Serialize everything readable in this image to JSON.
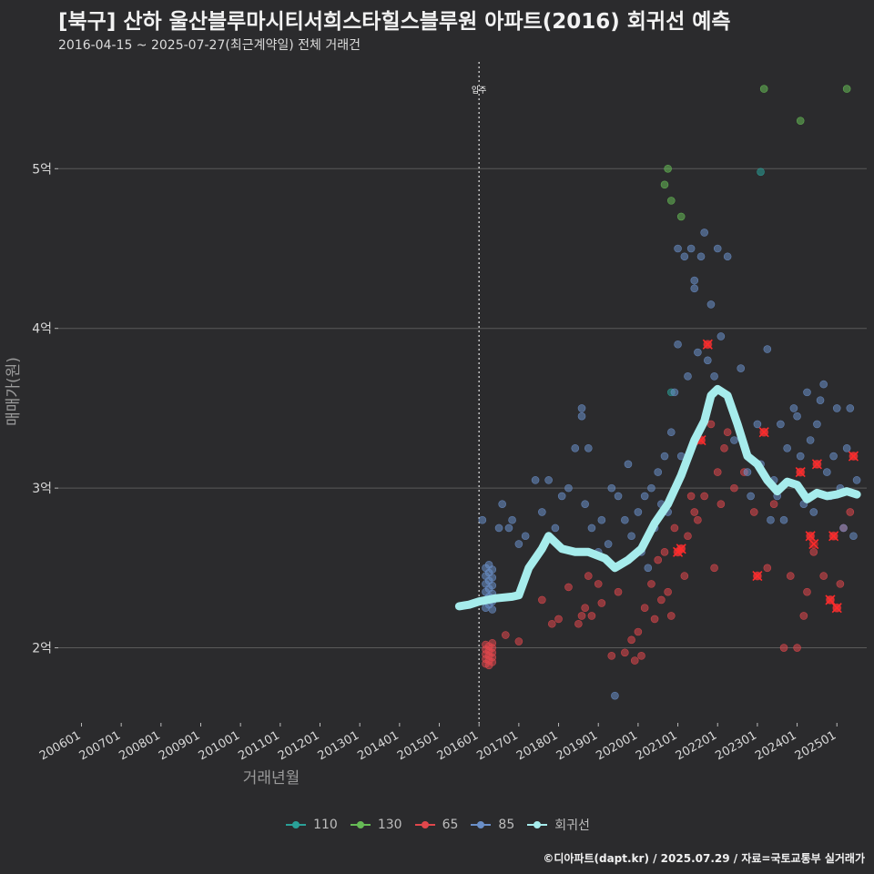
{
  "title": "[북구] 산하 울산블루마시티서희스타힐스블루원 아파트(2016) 회귀선 예측",
  "subtitle": "2016-04-15 ~ 2025-07-27(최근계약일) 전체 거래건",
  "caption": "©디아파트(dapt.kr) / 2025.07.29 / 자료=국토교통부 실거래가",
  "colors": {
    "background": "#2b2b2d",
    "grid": "#5a5a5a",
    "s110": "#2aa198",
    "s130": "#66bb55",
    "s65": "#e0474c",
    "s85": "#6a8fc8",
    "regression": "#a6ecec",
    "highlight": "#ff2a2a"
  },
  "chart_data": {
    "type": "scatter",
    "xlabel": "거래년월",
    "ylabel": "매매가(원)",
    "x_ticks": [
      "200601",
      "200701",
      "200801",
      "200901",
      "201001",
      "201101",
      "201201",
      "201301",
      "201401",
      "201501",
      "201601",
      "201701",
      "201801",
      "201901",
      "202001",
      "202101",
      "202201",
      "202301",
      "202401",
      "202501"
    ],
    "x_range": [
      "2005-06",
      "2025-10"
    ],
    "y_ticks": [
      {
        "value": 2.0,
        "label": "2억"
      },
      {
        "value": 3.0,
        "label": "3억"
      },
      {
        "value": 4.0,
        "label": "4억"
      },
      {
        "value": 5.0,
        "label": "5억"
      }
    ],
    "y_range": [
      1.53,
      5.68
    ],
    "y_unit": "억",
    "grid": true,
    "legend_position": "bottom",
    "vline": {
      "x": "2016-01",
      "label": "입주"
    },
    "series": [
      {
        "name": "110",
        "color_key": "s110",
        "points": [
          [
            "2020-11",
            3.6
          ],
          [
            "2023-02",
            4.98
          ]
        ]
      },
      {
        "name": "130",
        "color_key": "s130",
        "points": [
          [
            "2020-09",
            4.9
          ],
          [
            "2020-10",
            5.0
          ],
          [
            "2020-11",
            4.8
          ],
          [
            "2021-02",
            4.7
          ],
          [
            "2023-03",
            5.5
          ],
          [
            "2024-02",
            5.3
          ],
          [
            "2025-04",
            5.5
          ]
        ]
      },
      {
        "name": "65",
        "color_key": "s65",
        "points": [
          [
            "2016-03",
            1.9
          ],
          [
            "2016-03",
            1.93
          ],
          [
            "2016-03",
            1.96
          ],
          [
            "2016-03",
            1.99
          ],
          [
            "2016-03",
            2.02
          ],
          [
            "2016-04",
            1.89
          ],
          [
            "2016-04",
            1.92
          ],
          [
            "2016-04",
            1.95
          ],
          [
            "2016-04",
            1.98
          ],
          [
            "2016-04",
            2.01
          ],
          [
            "2016-05",
            1.91
          ],
          [
            "2016-05",
            1.94
          ],
          [
            "2016-05",
            1.97
          ],
          [
            "2016-05",
            2.0
          ],
          [
            "2016-05",
            2.03
          ],
          [
            "2016-09",
            2.08
          ],
          [
            "2017-01",
            2.04
          ],
          [
            "2017-08",
            2.3
          ],
          [
            "2017-11",
            2.15
          ],
          [
            "2018-01",
            2.18
          ],
          [
            "2018-04",
            2.38
          ],
          [
            "2018-07",
            2.15
          ],
          [
            "2018-08",
            2.2
          ],
          [
            "2018-09",
            2.25
          ],
          [
            "2018-10",
            2.45
          ],
          [
            "2018-11",
            2.2
          ],
          [
            "2019-01",
            2.4
          ],
          [
            "2019-02",
            2.28
          ],
          [
            "2019-05",
            1.95
          ],
          [
            "2019-07",
            2.35
          ],
          [
            "2019-09",
            1.97
          ],
          [
            "2019-11",
            2.05
          ],
          [
            "2019-12",
            1.92
          ],
          [
            "2020-01",
            2.1
          ],
          [
            "2020-02",
            1.95
          ],
          [
            "2020-03",
            2.25
          ],
          [
            "2020-05",
            2.4
          ],
          [
            "2020-06",
            2.18
          ],
          [
            "2020-07",
            2.55
          ],
          [
            "2020-08",
            2.3
          ],
          [
            "2020-09",
            2.6
          ],
          [
            "2020-10",
            2.35
          ],
          [
            "2020-11",
            2.2
          ],
          [
            "2020-12",
            2.75
          ],
          [
            "2021-01",
            2.6
          ],
          [
            "2021-02",
            2.62
          ],
          [
            "2021-03",
            2.45
          ],
          [
            "2021-04",
            2.7
          ],
          [
            "2021-05",
            2.95
          ],
          [
            "2021-06",
            2.85
          ],
          [
            "2021-07",
            2.8
          ],
          [
            "2021-08",
            3.3
          ],
          [
            "2021-09",
            2.95
          ],
          [
            "2021-10",
            3.9
          ],
          [
            "2021-11",
            3.4
          ],
          [
            "2021-12",
            2.5
          ],
          [
            "2022-01",
            3.1
          ],
          [
            "2022-02",
            2.9
          ],
          [
            "2022-03",
            3.25
          ],
          [
            "2022-04",
            3.35
          ],
          [
            "2022-06",
            3.0
          ],
          [
            "2022-09",
            3.1
          ],
          [
            "2022-12",
            2.85
          ],
          [
            "2023-01",
            2.45
          ],
          [
            "2023-03",
            3.35
          ],
          [
            "2023-04",
            2.5
          ],
          [
            "2023-06",
            2.9
          ],
          [
            "2023-09",
            2.0
          ],
          [
            "2023-11",
            2.45
          ],
          [
            "2024-01",
            2.0
          ],
          [
            "2024-02",
            3.1
          ],
          [
            "2024-03",
            2.2
          ],
          [
            "2024-04",
            2.35
          ],
          [
            "2024-05",
            2.7
          ],
          [
            "2024-06",
            2.6
          ],
          [
            "2024-07",
            3.15
          ],
          [
            "2024-09",
            2.45
          ],
          [
            "2024-11",
            2.3
          ],
          [
            "2024-12",
            2.7
          ],
          [
            "2025-01",
            2.25
          ],
          [
            "2025-02",
            2.4
          ],
          [
            "2025-03",
            2.75
          ],
          [
            "2025-05",
            2.85
          ],
          [
            "2025-06",
            3.2
          ]
        ]
      },
      {
        "name": "85",
        "color_key": "s85",
        "points": [
          [
            "2016-03",
            2.25
          ],
          [
            "2016-03",
            2.3
          ],
          [
            "2016-03",
            2.35
          ],
          [
            "2016-03",
            2.4
          ],
          [
            "2016-03",
            2.45
          ],
          [
            "2016-03",
            2.5
          ],
          [
            "2016-04",
            2.27
          ],
          [
            "2016-04",
            2.32
          ],
          [
            "2016-04",
            2.37
          ],
          [
            "2016-04",
            2.42
          ],
          [
            "2016-04",
            2.47
          ],
          [
            "2016-04",
            2.52
          ],
          [
            "2016-05",
            2.24
          ],
          [
            "2016-05",
            2.29
          ],
          [
            "2016-05",
            2.34
          ],
          [
            "2016-05",
            2.39
          ],
          [
            "2016-05",
            2.44
          ],
          [
            "2016-05",
            2.49
          ],
          [
            "2016-02",
            2.8
          ],
          [
            "2016-07",
            2.75
          ],
          [
            "2016-08",
            2.9
          ],
          [
            "2016-10",
            2.75
          ],
          [
            "2016-11",
            2.8
          ],
          [
            "2017-01",
            2.65
          ],
          [
            "2017-03",
            2.7
          ],
          [
            "2017-06",
            3.05
          ],
          [
            "2017-08",
            2.85
          ],
          [
            "2017-10",
            3.05
          ],
          [
            "2017-12",
            2.75
          ],
          [
            "2018-02",
            2.95
          ],
          [
            "2018-04",
            3.0
          ],
          [
            "2018-06",
            3.25
          ],
          [
            "2018-08",
            3.5
          ],
          [
            "2018-08",
            3.45
          ],
          [
            "2018-09",
            2.9
          ],
          [
            "2018-10",
            3.25
          ],
          [
            "2018-11",
            2.75
          ],
          [
            "2019-01",
            2.6
          ],
          [
            "2019-02",
            2.8
          ],
          [
            "2019-04",
            2.65
          ],
          [
            "2019-05",
            3.0
          ],
          [
            "2019-06",
            1.7
          ],
          [
            "2019-07",
            2.95
          ],
          [
            "2019-09",
            2.8
          ],
          [
            "2019-10",
            3.15
          ],
          [
            "2019-11",
            2.7
          ],
          [
            "2020-01",
            2.85
          ],
          [
            "2020-02",
            2.6
          ],
          [
            "2020-03",
            2.95
          ],
          [
            "2020-04",
            2.5
          ],
          [
            "2020-05",
            3.0
          ],
          [
            "2020-06",
            2.75
          ],
          [
            "2020-07",
            3.1
          ],
          [
            "2020-08",
            2.9
          ],
          [
            "2020-09",
            3.2
          ],
          [
            "2020-10",
            2.85
          ],
          [
            "2020-11",
            3.35
          ],
          [
            "2020-12",
            3.6
          ],
          [
            "2021-01",
            3.9
          ],
          [
            "2021-01",
            4.5
          ],
          [
            "2021-02",
            3.2
          ],
          [
            "2021-03",
            4.45
          ],
          [
            "2021-04",
            3.7
          ],
          [
            "2021-05",
            4.5
          ],
          [
            "2021-06",
            4.25
          ],
          [
            "2021-06",
            4.3
          ],
          [
            "2021-07",
            3.85
          ],
          [
            "2021-08",
            4.45
          ],
          [
            "2021-09",
            4.6
          ],
          [
            "2021-10",
            3.8
          ],
          [
            "2021-11",
            4.15
          ],
          [
            "2021-12",
            3.7
          ],
          [
            "2022-01",
            4.5
          ],
          [
            "2022-02",
            3.95
          ],
          [
            "2022-04",
            4.45
          ],
          [
            "2022-06",
            3.3
          ],
          [
            "2022-08",
            3.75
          ],
          [
            "2022-10",
            3.1
          ],
          [
            "2022-11",
            2.95
          ],
          [
            "2023-01",
            3.4
          ],
          [
            "2023-02",
            3.15
          ],
          [
            "2023-04",
            3.87
          ],
          [
            "2023-05",
            2.8
          ],
          [
            "2023-06",
            3.05
          ],
          [
            "2023-07",
            2.95
          ],
          [
            "2023-08",
            3.4
          ],
          [
            "2023-09",
            2.8
          ],
          [
            "2023-10",
            3.25
          ],
          [
            "2023-12",
            3.5
          ],
          [
            "2024-01",
            3.45
          ],
          [
            "2024-02",
            3.2
          ],
          [
            "2024-03",
            2.9
          ],
          [
            "2024-04",
            3.6
          ],
          [
            "2024-05",
            3.3
          ],
          [
            "2024-06",
            2.85
          ],
          [
            "2024-07",
            3.4
          ],
          [
            "2024-08",
            3.55
          ],
          [
            "2024-09",
            3.65
          ],
          [
            "2024-10",
            3.1
          ],
          [
            "2024-11",
            2.95
          ],
          [
            "2024-12",
            3.2
          ],
          [
            "2025-01",
            3.5
          ],
          [
            "2025-02",
            3.0
          ],
          [
            "2025-03",
            2.75
          ],
          [
            "2025-04",
            3.25
          ],
          [
            "2025-05",
            3.5
          ],
          [
            "2025-06",
            2.7
          ],
          [
            "2025-07",
            3.05
          ]
        ]
      }
    ],
    "highlighted_recent": [
      [
        "2021-08",
        3.3
      ],
      [
        "2021-10",
        3.9
      ],
      [
        "2021-01",
        2.6
      ],
      [
        "2021-02",
        2.62
      ],
      [
        "2023-01",
        2.45
      ],
      [
        "2023-03",
        3.35
      ],
      [
        "2024-02",
        3.1
      ],
      [
        "2024-05",
        2.7
      ],
      [
        "2024-06",
        2.65
      ],
      [
        "2024-07",
        3.15
      ],
      [
        "2024-11",
        2.3
      ],
      [
        "2024-12",
        2.7
      ],
      [
        "2025-01",
        2.25
      ],
      [
        "2025-06",
        3.2
      ]
    ],
    "regression": {
      "name": "회귀선",
      "color_key": "regression",
      "points": [
        [
          "2015-07",
          2.26
        ],
        [
          "2015-10",
          2.27
        ],
        [
          "2016-01",
          2.29
        ],
        [
          "2016-06",
          2.31
        ],
        [
          "2016-11",
          2.32
        ],
        [
          "2017-01",
          2.33
        ],
        [
          "2017-04",
          2.5
        ],
        [
          "2017-08",
          2.62
        ],
        [
          "2017-10",
          2.7
        ],
        [
          "2018-02",
          2.62
        ],
        [
          "2018-06",
          2.6
        ],
        [
          "2018-10",
          2.6
        ],
        [
          "2019-03",
          2.56
        ],
        [
          "2019-06",
          2.5
        ],
        [
          "2019-10",
          2.55
        ],
        [
          "2020-02",
          2.62
        ],
        [
          "2020-06",
          2.78
        ],
        [
          "2020-10",
          2.9
        ],
        [
          "2021-02",
          3.08
        ],
        [
          "2021-06",
          3.3
        ],
        [
          "2021-09",
          3.42
        ],
        [
          "2021-11",
          3.58
        ],
        [
          "2022-01",
          3.62
        ],
        [
          "2022-04",
          3.58
        ],
        [
          "2022-07",
          3.4
        ],
        [
          "2022-10",
          3.2
        ],
        [
          "2023-01",
          3.15
        ],
        [
          "2023-04",
          3.05
        ],
        [
          "2023-07",
          2.98
        ],
        [
          "2023-10",
          3.04
        ],
        [
          "2024-01",
          3.02
        ],
        [
          "2024-04",
          2.93
        ],
        [
          "2024-07",
          2.97
        ],
        [
          "2024-10",
          2.95
        ],
        [
          "2025-01",
          2.96
        ],
        [
          "2025-04",
          2.98
        ],
        [
          "2025-07",
          2.96
        ]
      ]
    },
    "legend": [
      {
        "label": "110",
        "color_key": "s110"
      },
      {
        "label": "130",
        "color_key": "s130"
      },
      {
        "label": "65",
        "color_key": "s65"
      },
      {
        "label": "85",
        "color_key": "s85"
      },
      {
        "label": "회귀선",
        "color_key": "regression"
      }
    ]
  }
}
